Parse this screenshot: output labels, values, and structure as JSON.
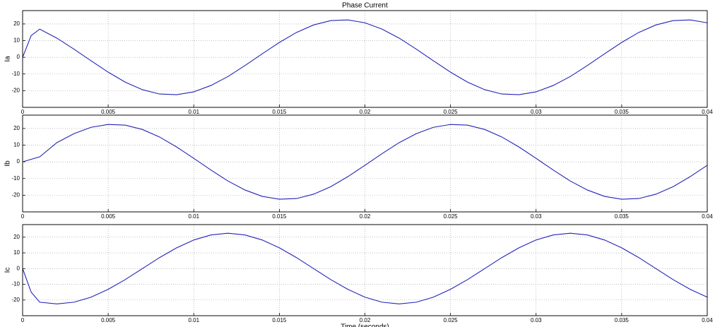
{
  "chart_data": [
    {
      "type": "line",
      "title": "Phase Current",
      "ylabel": "Ia",
      "color": "#2323b8",
      "grid": true,
      "x": [
        0,
        0.0005,
        0.001,
        0.002,
        0.003,
        0.004,
        0.005,
        0.006,
        0.007,
        0.008,
        0.009,
        0.01,
        0.011,
        0.012,
        0.013,
        0.014,
        0.015,
        0.016,
        0.017,
        0.018,
        0.019,
        0.02,
        0.021,
        0.022,
        0.023,
        0.024,
        0.025,
        0.026,
        0.027,
        0.028,
        0.029,
        0.03,
        0.031,
        0.032,
        0.033,
        0.034,
        0.035,
        0.036,
        0.037,
        0.038,
        0.039,
        0.04
      ],
      "values": [
        0,
        13,
        16.9,
        11.5,
        4.9,
        -2.1,
        -8.9,
        -14.9,
        -19.4,
        -22.0,
        -22.4,
        -20.7,
        -16.9,
        -11.5,
        -4.9,
        2.1,
        8.9,
        14.9,
        19.4,
        22.0,
        22.4,
        20.7,
        16.9,
        11.5,
        4.9,
        -2.1,
        -8.9,
        -14.9,
        -19.4,
        -22.0,
        -22.4,
        -20.7,
        -16.9,
        -11.5,
        -4.9,
        2.1,
        8.9,
        14.9,
        19.4,
        22.0,
        22.4,
        20.7
      ],
      "xlim": [
        0,
        0.04
      ],
      "xticks": [
        0,
        0.005,
        0.01,
        0.015,
        0.02,
        0.025,
        0.03,
        0.035,
        0.04
      ],
      "ylim": [
        -30,
        28
      ],
      "yticks": [
        -20,
        -10,
        0,
        10,
        20
      ]
    },
    {
      "type": "line",
      "ylabel": "Ib",
      "color": "#2323b8",
      "grid": true,
      "x": [
        0,
        0.001,
        0.002,
        0.003,
        0.004,
        0.005,
        0.006,
        0.007,
        0.008,
        0.009,
        0.01,
        0.011,
        0.012,
        0.013,
        0.014,
        0.015,
        0.016,
        0.017,
        0.018,
        0.019,
        0.02,
        0.021,
        0.022,
        0.023,
        0.024,
        0.025,
        0.026,
        0.027,
        0.028,
        0.029,
        0.03,
        0.031,
        0.032,
        0.033,
        0.034,
        0.035,
        0.036,
        0.037,
        0.038,
        0.039,
        0.04
      ],
      "values": [
        0,
        3,
        11.5,
        16.9,
        20.7,
        22.4,
        22.0,
        19.4,
        14.9,
        8.9,
        2.1,
        -4.9,
        -11.5,
        -16.9,
        -20.7,
        -22.4,
        -22.0,
        -19.4,
        -14.9,
        -8.9,
        -2.1,
        4.9,
        11.5,
        16.9,
        20.7,
        22.4,
        22.0,
        19.4,
        14.9,
        8.9,
        2.1,
        -4.9,
        -11.5,
        -16.9,
        -20.7,
        -22.4,
        -22.0,
        -19.4,
        -14.9,
        -8.9,
        -2.1
      ],
      "xlim": [
        0,
        0.04
      ],
      "xticks": [
        0,
        0.005,
        0.01,
        0.015,
        0.02,
        0.025,
        0.03,
        0.035,
        0.04
      ],
      "ylim": [
        -30,
        28
      ],
      "yticks": [
        -20,
        -10,
        0,
        10,
        20
      ]
    },
    {
      "type": "line",
      "ylabel": "Ic",
      "xlabel": "Time (seconds)",
      "color": "#2323b8",
      "grid": true,
      "x": [
        0,
        0.0005,
        0.001,
        0.002,
        0.003,
        0.004,
        0.005,
        0.006,
        0.007,
        0.008,
        0.009,
        0.01,
        0.011,
        0.012,
        0.013,
        0.014,
        0.015,
        0.016,
        0.017,
        0.018,
        0.019,
        0.02,
        0.021,
        0.022,
        0.023,
        0.024,
        0.025,
        0.026,
        0.027,
        0.028,
        0.029,
        0.03,
        0.031,
        0.032,
        0.033,
        0.034,
        0.035,
        0.036,
        0.037,
        0.038,
        0.039,
        0.04
      ],
      "values": [
        0,
        -15,
        -21.4,
        -22.5,
        -21.4,
        -18.2,
        -13.2,
        -7.0,
        0,
        7.0,
        13.2,
        18.2,
        21.4,
        22.5,
        21.4,
        18.2,
        13.2,
        7.0,
        0,
        -7.0,
        -13.2,
        -18.2,
        -21.4,
        -22.5,
        -21.4,
        -18.2,
        -13.2,
        -7.0,
        0,
        7.0,
        13.2,
        18.2,
        21.4,
        22.5,
        21.4,
        18.2,
        13.2,
        7.0,
        0,
        -7.0,
        -13.2,
        -18.2
      ],
      "xlim": [
        0,
        0.04
      ],
      "xticks": [
        0,
        0.005,
        0.01,
        0.015,
        0.02,
        0.025,
        0.03,
        0.035,
        0.04
      ],
      "ylim": [
        -30,
        28
      ],
      "yticks": [
        -20,
        -10,
        0,
        10,
        20
      ]
    }
  ]
}
